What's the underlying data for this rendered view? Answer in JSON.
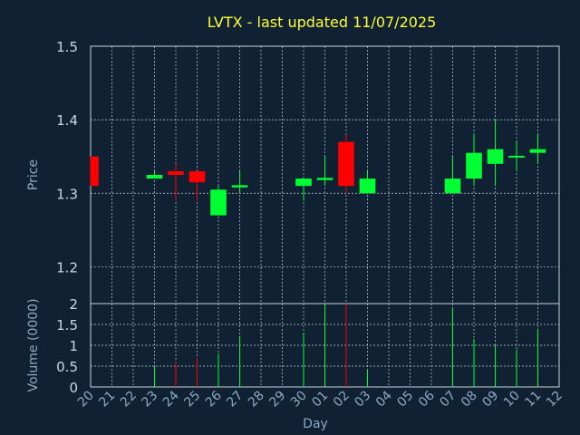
{
  "chart_data": {
    "type": "candlestick",
    "title": "LVTX - last updated 11/07/2025",
    "xlabel": "Day",
    "price_panel": {
      "ylabel": "Price",
      "ylim": [
        1.15,
        1.5
      ],
      "yticks": [
        "1.2",
        "1.3",
        "1.4",
        "1.5"
      ]
    },
    "volume_panel": {
      "ylabel": "Volume (0000)",
      "ylim": [
        0,
        2
      ],
      "yticks": [
        "0",
        "0.5",
        "1",
        "1.5",
        "2"
      ]
    },
    "x_tick_labels": [
      "20",
      "21",
      "22",
      "23",
      "24",
      "25",
      "26",
      "27",
      "28",
      "29",
      "30",
      "01",
      "02",
      "03",
      "04",
      "05",
      "06",
      "07",
      "08",
      "09",
      "10",
      "11",
      "12"
    ],
    "grid": true,
    "colors": {
      "up": "#00ff33",
      "down": "#ff0000",
      "background": "#0f2133",
      "grid": "#c8d2dc",
      "title": "#ffff33",
      "axis_label": "#8fa9c4"
    },
    "candles": [
      {
        "day": "20",
        "open": 1.35,
        "high": 1.35,
        "low": 1.31,
        "close": 1.31,
        "volume": 0.0
      },
      {
        "day": "23",
        "open": 1.32,
        "high": 1.33,
        "low": 1.32,
        "close": 1.325,
        "volume": 0.5
      },
      {
        "day": "24",
        "open": 1.33,
        "high": 1.34,
        "low": 1.29,
        "close": 1.325,
        "volume": 0.6
      },
      {
        "day": "25",
        "open": 1.33,
        "high": 1.33,
        "low": 1.29,
        "close": 1.315,
        "volume": 0.7
      },
      {
        "day": "26",
        "open": 1.27,
        "high": 1.31,
        "low": 1.27,
        "close": 1.305,
        "volume": 0.8
      },
      {
        "day": "27",
        "open": 1.308,
        "high": 1.33,
        "low": 1.3,
        "close": 1.311,
        "volume": 1.2
      },
      {
        "day": "30",
        "open": 1.31,
        "high": 1.32,
        "low": 1.29,
        "close": 1.32,
        "volume": 1.3
      },
      {
        "day": "01",
        "open": 1.318,
        "high": 1.35,
        "low": 1.31,
        "close": 1.321,
        "volume": 2.0
      },
      {
        "day": "02",
        "open": 1.37,
        "high": 1.38,
        "low": 1.3,
        "close": 1.31,
        "volume": 2.0
      },
      {
        "day": "03",
        "open": 1.3,
        "high": 1.33,
        "low": 1.3,
        "close": 1.32,
        "volume": 0.4
      },
      {
        "day": "07",
        "open": 1.3,
        "high": 1.35,
        "low": 1.3,
        "close": 1.32,
        "volume": 1.9
      },
      {
        "day": "08",
        "open": 1.32,
        "high": 1.38,
        "low": 1.31,
        "close": 1.355,
        "volume": 1.15
      },
      {
        "day": "09",
        "open": 1.34,
        "high": 1.4,
        "low": 1.31,
        "close": 1.36,
        "volume": 1.0
      },
      {
        "day": "10",
        "open": 1.349,
        "high": 1.37,
        "low": 1.33,
        "close": 1.351,
        "volume": 0.9
      },
      {
        "day": "11",
        "open": 1.355,
        "high": 1.38,
        "low": 1.34,
        "close": 1.36,
        "volume": 1.4
      }
    ]
  }
}
